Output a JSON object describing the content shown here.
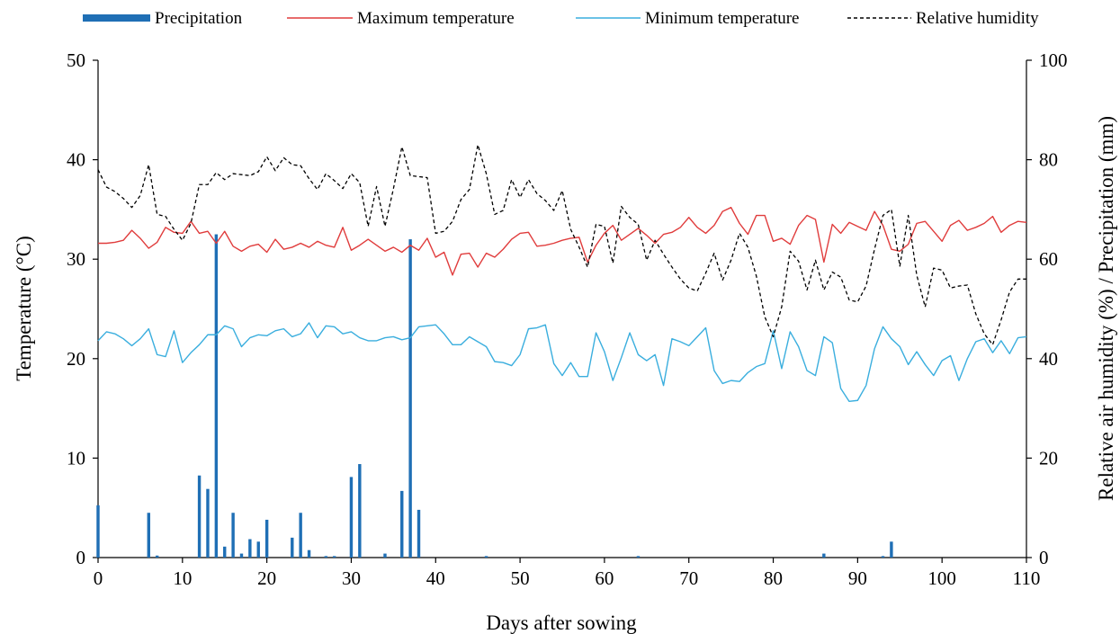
{
  "chart_data": {
    "type": "bar+line",
    "xlabel": "Days after sowing",
    "ylabel_left": "Temperature (°C)",
    "ylabel_right": "Relative air humidity (%) / Precipitation (mm)",
    "xlim": [
      0,
      110
    ],
    "ylim_left": [
      0,
      50
    ],
    "ylim_right": [
      0,
      100
    ],
    "x_ticks": [
      "0",
      "10",
      "20",
      "30",
      "40",
      "50",
      "60",
      "70",
      "80",
      "90",
      "100",
      "110"
    ],
    "y_ticks_left": [
      "0",
      "10",
      "20",
      "30",
      "40",
      "50"
    ],
    "y_ticks_right": [
      "0",
      "20",
      "40",
      "60",
      "80",
      "100"
    ],
    "grid": false,
    "legend_position": "top",
    "legend": [
      {
        "label": "Precipitation",
        "style": "bar",
        "color": "#1f6fb5"
      },
      {
        "label": "Maximum temperature",
        "style": "line",
        "color": "#e03c3c"
      },
      {
        "label": "Minimum temperature",
        "style": "line",
        "color": "#3aaede"
      },
      {
        "label": "Relative humidity",
        "style": "dashed",
        "color": "#000000"
      }
    ],
    "precipitation": {
      "axis": "right",
      "color": "#1f6fb5",
      "points": [
        [
          0,
          10.5
        ],
        [
          6,
          9
        ],
        [
          7,
          0.4
        ],
        [
          12,
          16.5
        ],
        [
          13,
          13.8
        ],
        [
          14,
          65
        ],
        [
          15,
          2.2
        ],
        [
          16,
          9
        ],
        [
          17,
          0.8
        ],
        [
          18,
          3.7
        ],
        [
          19,
          3.2
        ],
        [
          20,
          7.6
        ],
        [
          23,
          4
        ],
        [
          24,
          9
        ],
        [
          25,
          1.5
        ],
        [
          27,
          0.3
        ],
        [
          28,
          0.3
        ],
        [
          30,
          16.2
        ],
        [
          31,
          18.8
        ],
        [
          34,
          0.8
        ],
        [
          36,
          13.4
        ],
        [
          37,
          64
        ],
        [
          38,
          9.6
        ],
        [
          46,
          0.3
        ],
        [
          64,
          0.3
        ],
        [
          86,
          0.8
        ],
        [
          93,
          0.3
        ],
        [
          94,
          3.2
        ]
      ]
    },
    "series": [
      {
        "name": "Maximum temperature",
        "axis": "left",
        "color": "#e03c3c",
        "dash": false,
        "values": [
          31.6,
          31.6,
          31.7,
          31.9,
          32.9,
          32.1,
          31.1,
          31.7,
          33.2,
          32.7,
          32.6,
          33.8,
          32.6,
          32.8,
          31.6,
          32.8,
          31.3,
          30.8,
          31.3,
          31.5,
          30.7,
          32,
          31,
          31.2,
          31.6,
          31.2,
          31.8,
          31.4,
          31.2,
          33.2,
          30.9,
          31.4,
          32,
          31.4,
          30.8,
          31.2,
          30.7,
          31.4,
          30.9,
          32.1,
          30.2,
          30.7,
          28.4,
          30.5,
          30.6,
          29.2,
          30.6,
          30.2,
          31,
          32,
          32.6,
          32.7,
          31.3,
          31.4,
          31.6,
          31.9,
          32.1,
          32.2,
          29.7,
          31.4,
          32.6,
          33.4,
          31.9,
          32.5,
          33.1,
          32.4,
          31.6,
          32.5,
          32.7,
          33.2,
          34.2,
          33.2,
          32.6,
          33.4,
          34.8,
          35.2,
          33.6,
          32.5,
          34.4,
          34.4,
          31.8,
          32.1,
          31.5,
          33.4,
          34.4,
          34,
          29.7,
          33.5,
          32.6,
          33.7,
          33.3,
          32.9,
          34.8,
          33.4,
          31,
          30.8,
          31.5,
          33.6,
          33.8,
          32.8,
          31.8,
          33.4,
          33.9,
          32.9,
          33.2,
          33.6,
          34.3,
          32.7,
          33.4,
          33.8,
          33.7
        ]
      },
      {
        "name": "Minimum temperature",
        "axis": "left",
        "color": "#3aaede",
        "dash": false,
        "values": [
          21.8,
          22.7,
          22.5,
          22,
          21.3,
          22,
          23,
          20.4,
          20.2,
          22.8,
          19.6,
          20.6,
          21.4,
          22.4,
          22.4,
          23.3,
          23,
          21.2,
          22.1,
          22.4,
          22.3,
          22.8,
          23,
          22.2,
          22.5,
          23.6,
          22.1,
          23.3,
          23.2,
          22.5,
          22.7,
          22.1,
          21.8,
          21.8,
          22.1,
          22.2,
          21.9,
          22.1,
          23.2,
          23.3,
          23.4,
          22.5,
          21.4,
          21.4,
          22.2,
          21.7,
          21.2,
          19.7,
          19.6,
          19.3,
          20.4,
          23,
          23.1,
          23.4,
          19.5,
          18.3,
          19.6,
          18.2,
          18.2,
          22.6,
          20.7,
          17.8,
          20.1,
          22.6,
          20.4,
          19.8,
          20.4,
          17.3,
          22,
          21.7,
          21.3,
          22.2,
          23.1,
          18.8,
          17.5,
          17.8,
          17.7,
          18.6,
          19.2,
          19.5,
          22.8,
          19,
          22.7,
          21.2,
          18.8,
          18.3,
          22.2,
          21.6,
          17,
          15.7,
          15.8,
          17.3,
          21,
          23.2,
          22,
          21.2,
          19.4,
          20.7,
          19.4,
          18.3,
          19.8,
          20.3,
          17.8,
          20,
          21.7,
          22,
          20.6,
          21.8,
          20.5,
          22.1,
          22.2
        ]
      },
      {
        "name": "Relative humidity",
        "axis": "right",
        "color": "#000000",
        "dash": true,
        "values": [
          78,
          74.5,
          73.6,
          72.2,
          70.4,
          72.8,
          79,
          69,
          68.6,
          66,
          63.8,
          67.2,
          75,
          75,
          77.4,
          76,
          77.2,
          77,
          76.8,
          77.6,
          80.6,
          77.8,
          80.4,
          79,
          78.8,
          76.2,
          74,
          77.2,
          75.8,
          74.2,
          77.2,
          75.4,
          66.6,
          74.6,
          66.6,
          74.2,
          82.6,
          76.8,
          76.6,
          76.4,
          65.2,
          65.6,
          67.6,
          72,
          74,
          83,
          77.2,
          69,
          69.8,
          76,
          72.4,
          76,
          73.2,
          71.8,
          69.8,
          73.8,
          66,
          62.4,
          58.4,
          67,
          66.6,
          59.2,
          70.6,
          68.4,
          67,
          59.8,
          63.8,
          61,
          58.4,
          56,
          54.2,
          53.6,
          57.2,
          61.2,
          55.8,
          59.8,
          65.2,
          62.4,
          56.6,
          48.4,
          44.4,
          50.4,
          61.6,
          59.6,
          53.8,
          59.8,
          53.8,
          57.4,
          56.4,
          51.8,
          51.4,
          54.6,
          62,
          68.8,
          70,
          58.6,
          68.8,
          56.8,
          50.4,
          58.2,
          57.8,
          54.2,
          54.6,
          54.8,
          49,
          45,
          42.8,
          47.8,
          53.4,
          56,
          56
        ]
      }
    ]
  }
}
